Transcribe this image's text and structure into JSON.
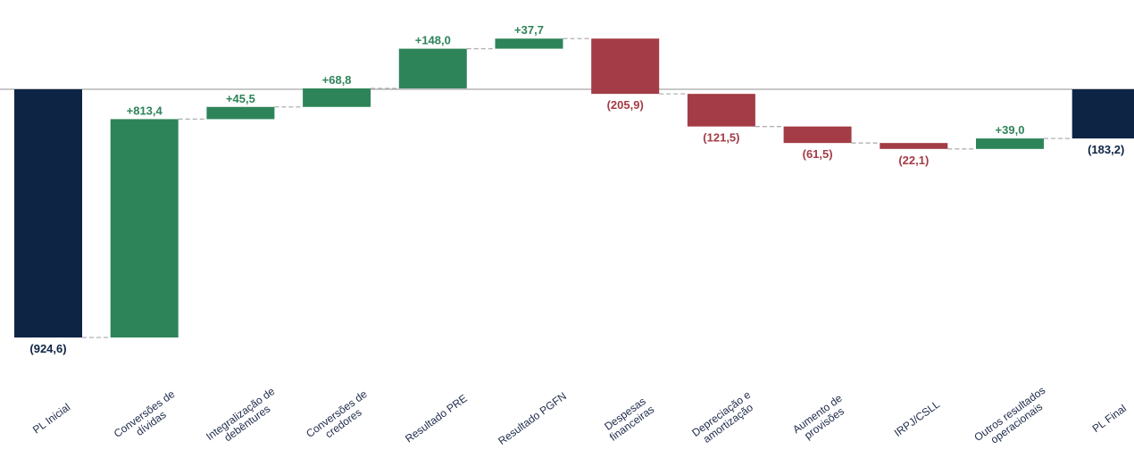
{
  "chart_data": {
    "type": "waterfall",
    "categories": [
      [
        "PL Inicial"
      ],
      [
        "Conversões de",
        "dívidas"
      ],
      [
        "Integralização de",
        "debêntures"
      ],
      [
        "Conversões de",
        "credores"
      ],
      [
        "Resultado PRE"
      ],
      [
        "Resultado PGFN"
      ],
      [
        "Despesas",
        "financeiras"
      ],
      [
        "Depreciação e",
        "amortização"
      ],
      [
        "Aumento de",
        "provisões"
      ],
      [
        "IRPJ/CSLL"
      ],
      [
        "Outros resultados",
        "operacionais"
      ],
      [
        "PL Final"
      ]
    ],
    "values": [
      -924.6,
      813.4,
      45.5,
      68.8,
      148.0,
      37.7,
      -205.9,
      -121.5,
      -61.5,
      -22.1,
      39.0,
      -183.2
    ],
    "kinds": [
      "total",
      "delta",
      "delta",
      "delta",
      "delta",
      "delta",
      "delta",
      "delta",
      "delta",
      "delta",
      "delta",
      "total"
    ],
    "labels": [
      "(924,6)",
      "+813,4",
      "+45,5",
      "+68,8",
      "+148,0",
      "+37,7",
      "(205,9)",
      "(121,5)",
      "(61,5)",
      "(22,1)",
      "+39,0",
      "(183,2)"
    ],
    "colors": {
      "total": "#0d2444",
      "increase": "#2e8459",
      "decrease": "#a33c46",
      "connector": "#b0b0b0",
      "baseline": "#a6a6a6"
    },
    "grid": false,
    "title": "",
    "xlabel": "",
    "ylabel": ""
  }
}
